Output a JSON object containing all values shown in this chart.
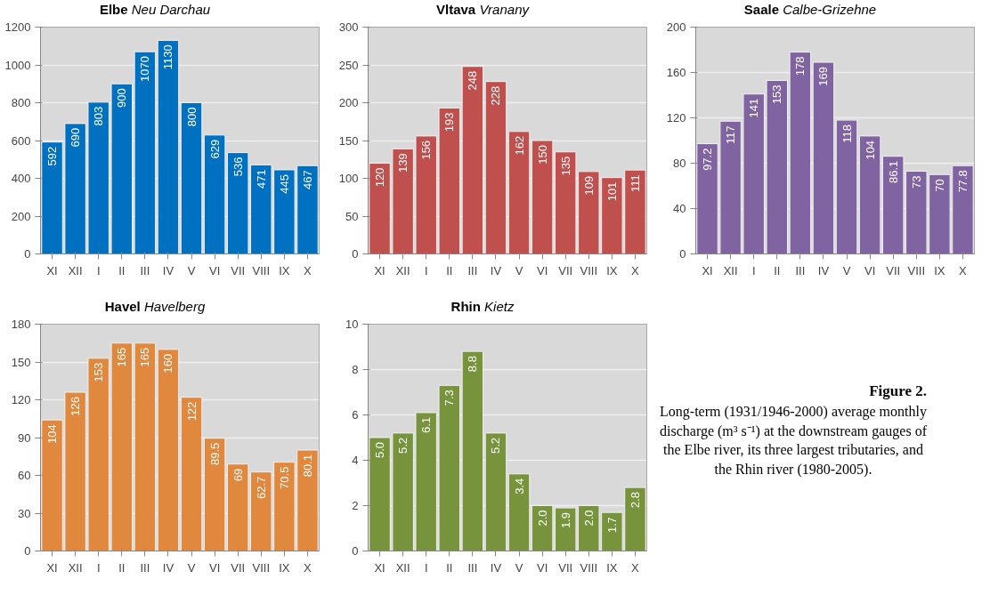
{
  "chart_data": [
    {
      "type": "bar",
      "title": "Elbe Neu Darchau",
      "categories": [
        "XI",
        "XII",
        "I",
        "II",
        "III",
        "IV",
        "V",
        "VI",
        "VII",
        "VIII",
        "IX",
        "X"
      ],
      "values": [
        592,
        690,
        803,
        900,
        1070,
        1130,
        800,
        629,
        536,
        471,
        445,
        467
      ],
      "value_labels": [
        "592",
        "690",
        "803",
        "900",
        "1070",
        "1130",
        "800",
        "629",
        "536",
        "471",
        "445",
        "467"
      ],
      "color": "#0070c0",
      "ylim": [
        0,
        1200
      ],
      "yticks": [
        0,
        200,
        400,
        600,
        800,
        1000,
        1200
      ],
      "grid": "y"
    },
    {
      "type": "bar",
      "title": "Vltava Vranany",
      "categories": [
        "XI",
        "XII",
        "I",
        "II",
        "III",
        "IV",
        "V",
        "VI",
        "VII",
        "VIII",
        "IX",
        "X"
      ],
      "values": [
        120,
        139,
        156,
        193,
        248,
        228,
        162,
        150,
        135,
        109,
        101,
        111
      ],
      "value_labels": [
        "120",
        "139",
        "156",
        "193",
        "248",
        "228",
        "162",
        "150",
        "135",
        "109",
        "101",
        "111"
      ],
      "color": "#c0504d",
      "ylim": [
        0,
        300
      ],
      "yticks": [
        0,
        50,
        100,
        150,
        200,
        250,
        300
      ],
      "grid": "y"
    },
    {
      "type": "bar",
      "title": "Saale Calbe-Grizehne",
      "categories": [
        "XI",
        "XII",
        "I",
        "II",
        "III",
        "IV",
        "V",
        "VI",
        "VII",
        "VIII",
        "IX",
        "X"
      ],
      "values": [
        97.2,
        117,
        141,
        153,
        178,
        169,
        118,
        104,
        86.1,
        73,
        70,
        77.8
      ],
      "value_labels": [
        "97.2",
        "117",
        "141",
        "153",
        "178",
        "169",
        "118",
        "104",
        "86.1",
        "73",
        "70",
        "77.8"
      ],
      "color": "#8064a2",
      "ylim": [
        0,
        200
      ],
      "yticks": [
        0,
        40,
        80,
        120,
        160,
        200
      ],
      "grid": "y"
    },
    {
      "type": "bar",
      "title": "Havel Havelberg",
      "categories": [
        "XI",
        "XII",
        "I",
        "II",
        "III",
        "IV",
        "V",
        "VI",
        "VII",
        "VIII",
        "IX",
        "X"
      ],
      "values": [
        104,
        126,
        153,
        165,
        165,
        160,
        122,
        89.5,
        69,
        62.7,
        70.5,
        80.1
      ],
      "value_labels": [
        "104",
        "126",
        "153",
        "165",
        "165",
        "160",
        "122",
        "89.5",
        "69",
        "62.7",
        "70.5",
        "80.1"
      ],
      "color": "#e0883e",
      "ylim": [
        0,
        180
      ],
      "yticks": [
        0,
        30,
        60,
        90,
        120,
        150,
        180
      ],
      "grid": "y"
    },
    {
      "type": "bar",
      "title": "Rhin Kietz",
      "categories": [
        "XI",
        "XII",
        "I",
        "II",
        "III",
        "IV",
        "V",
        "VI",
        "VII",
        "VIII",
        "IX",
        "X"
      ],
      "values": [
        5.0,
        5.2,
        6.1,
        7.3,
        8.8,
        5.2,
        3.4,
        2.0,
        1.9,
        2.0,
        1.7,
        2.8
      ],
      "value_labels": [
        "5.0",
        "5.2",
        "6.1",
        "7.3",
        "8.8",
        "5.2",
        "3.4",
        "2.0",
        "1.9",
        "2.0",
        "1.7",
        "2.8"
      ],
      "color": "#77933c",
      "ylim": [
        0,
        10
      ],
      "yticks": [
        0,
        2,
        4,
        6,
        8,
        10
      ],
      "grid": "y"
    },
    {
      "type": "other",
      "title": "Figure 2.",
      "annotations": [
        "Long-term (1931/1946-2000) average monthly discharge (m³ s⁻¹) at the downstream gauges of the Elbe river, its three largest tributaries, and the Rhin river (1980-2005)."
      ]
    }
  ]
}
